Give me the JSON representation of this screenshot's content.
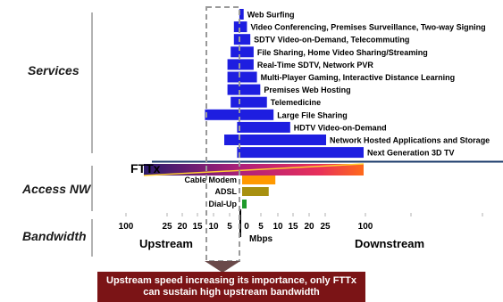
{
  "chart_data": {
    "type": "bar",
    "orientation": "horizontal-diverging",
    "row_labels": [
      "Services",
      "Access NW",
      "Bandwidth"
    ],
    "services": [
      {
        "label": "Web Surfing",
        "upstream": 0.3,
        "downstream": 1
      },
      {
        "label": "Video Conferencing, Premises Surveillance, Two-way Signing",
        "upstream": 2,
        "downstream": 2
      },
      {
        "label": "SDTV Video-on-Demand, Telecommuting",
        "upstream": 2,
        "downstream": 3
      },
      {
        "label": "File Sharing, Home Video Sharing/Streaming",
        "upstream": 3,
        "downstream": 4
      },
      {
        "label": "Real-Time SDTV, Network PVR",
        "upstream": 4,
        "downstream": 4
      },
      {
        "label": "Multi-Player Gaming, Interactive Distance Learning",
        "upstream": 4,
        "downstream": 5
      },
      {
        "label": "Premises Web Hosting",
        "upstream": 4,
        "downstream": 6
      },
      {
        "label": "Telemedicine",
        "upstream": 3,
        "downstream": 8
      },
      {
        "label": "Large File Sharing",
        "upstream": 11,
        "downstream": 10
      },
      {
        "label": "HDTV Video-on-Demand",
        "upstream": 1,
        "downstream": 15
      },
      {
        "label": "Network Hosted Applications and Storage",
        "upstream": 5,
        "downstream": 30
      },
      {
        "label": "Next Generation 3D TV",
        "upstream": 1,
        "downstream": 100
      }
    ],
    "access": {
      "fttx": {
        "label": "FTTx",
        "upstream": 100,
        "downstream": 100
      },
      "items": [
        {
          "label": "Cable Modem",
          "upstream": 0,
          "downstream": 10,
          "color": "#ff9900"
        },
        {
          "label": "ADSL",
          "upstream": 0,
          "downstream": 8,
          "color": "#a89010"
        },
        {
          "label": "Dial-Up",
          "upstream": 0,
          "downstream": 0.5,
          "color": "#1f9a2a"
        }
      ]
    },
    "axis": {
      "upstream_ticks": [
        "100",
        "25",
        "20",
        "15",
        "10",
        "5"
      ],
      "downstream_ticks": [
        "0",
        "5",
        "10",
        "15",
        "20",
        "25",
        "100"
      ],
      "unit": "Mbps",
      "upstream_label": "Upstream",
      "downstream_label": "Downstream"
    },
    "bar_color": "#1e1ee0",
    "callout": "Upstream speed increasing its importance, only FTTx can sustain high upstream bandwidth"
  }
}
